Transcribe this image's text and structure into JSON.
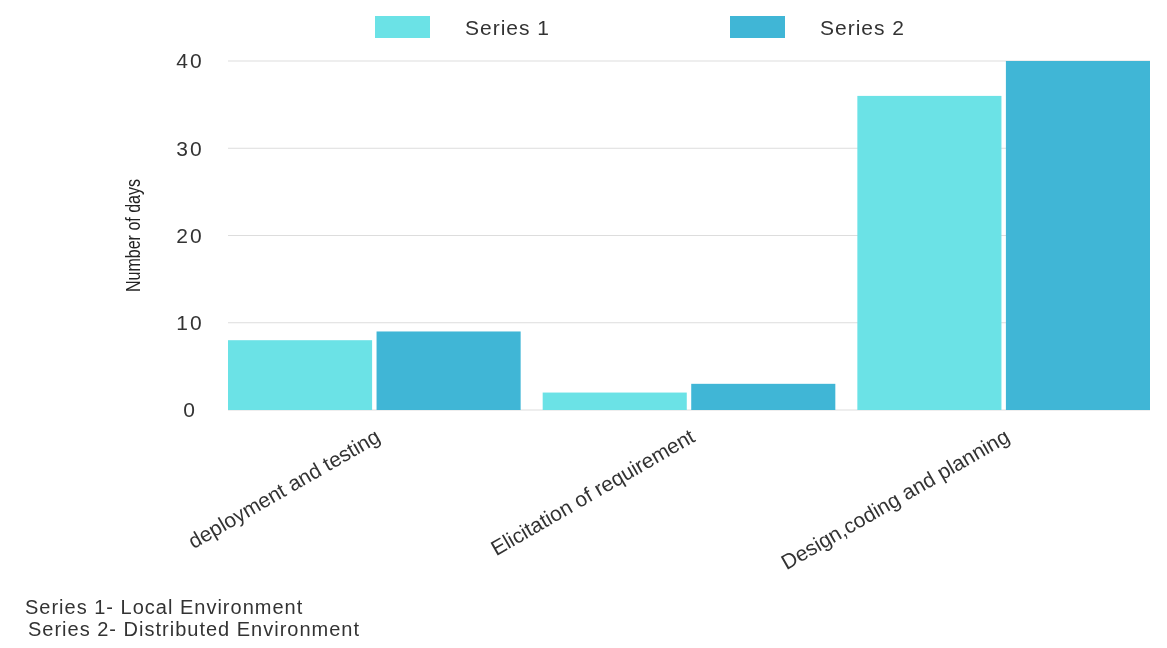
{
  "chart_data": {
    "type": "bar",
    "categories": [
      "deployment and testing",
      "Elicitation of requirement",
      "Design,coding and planning"
    ],
    "series": [
      {
        "name": "Series 1",
        "color": "#6be2e6",
        "values": [
          8,
          2,
          36
        ]
      },
      {
        "name": "Series 2",
        "color": "#40b6d6",
        "values": [
          9,
          3,
          40
        ]
      }
    ],
    "ylabel": "Number of days",
    "ylim": [
      0,
      40
    ],
    "yticks": [
      0,
      10,
      20,
      30,
      40
    ],
    "grid": "y",
    "legend": "top",
    "annotations": [
      "Series 1- Local Environment",
      "Series 2- Distributed Environment"
    ]
  }
}
